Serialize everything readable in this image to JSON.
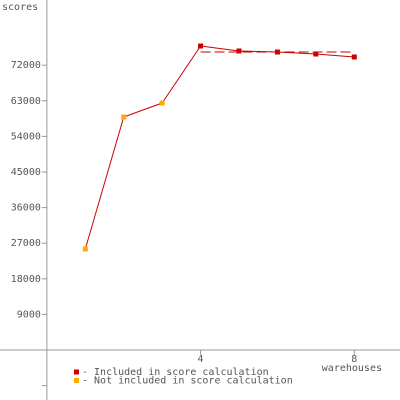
{
  "chart_data": {
    "type": "line",
    "y_label": "scores",
    "x_label": "warehouses",
    "line_color": "#cc0000",
    "series": [
      {
        "name": "- Included in score calculation",
        "color": "#cc0000",
        "x": [
          4,
          5,
          6,
          7,
          8
        ],
        "values": [
          76850,
          75590,
          75330,
          74830,
          74070
        ]
      },
      {
        "name": "- Not included in score calculation",
        "color": "#ffaa00",
        "x": [
          1,
          2,
          3
        ],
        "values": [
          25530,
          58900,
          62440
        ]
      }
    ],
    "reference_line": {
      "value": 75334,
      "x": [
        4,
        8
      ],
      "color": "#cc0000"
    },
    "xlim": [
      -1.22,
      9.19
    ],
    "ylim": [
      -12640,
      88480
    ],
    "xticks": [
      4,
      8
    ],
    "yticks": [
      {
        "value": -9000,
        "label": null
      },
      9000,
      18000,
      27000,
      36000,
      45000,
      54000,
      63000,
      72000
    ]
  }
}
